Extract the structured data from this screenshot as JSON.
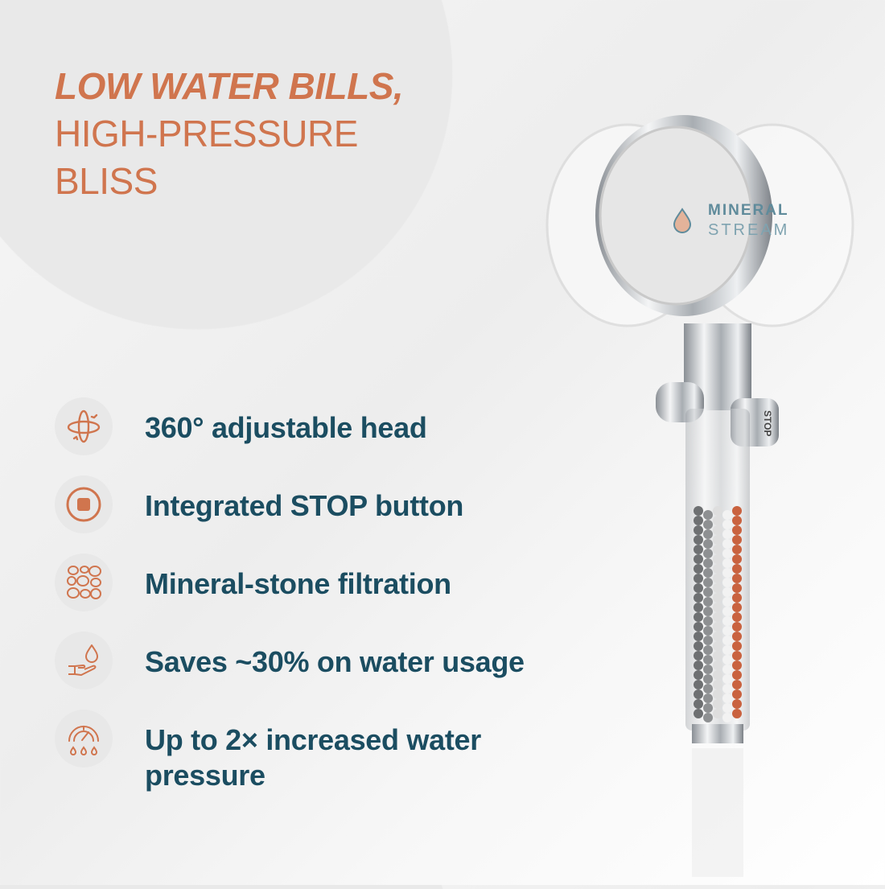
{
  "headline": {
    "emphasis": "LOW WATER BILLS,",
    "line2": "HIGH-PRESSURE",
    "line3": "BLISS"
  },
  "features": [
    {
      "icon": "rotate-360-icon",
      "label": "360° adjustable head"
    },
    {
      "icon": "stop-button-icon",
      "label": "Integrated STOP button"
    },
    {
      "icon": "mineral-stones-icon",
      "label": "Mineral-stone filtration"
    },
    {
      "icon": "hand-water-drop-icon",
      "label": "Saves ~30% on water usage"
    },
    {
      "icon": "pressure-gauge-icon",
      "label": "Up to 2× increased water pressure"
    }
  ],
  "product": {
    "brand_line1": "MINERAL",
    "brand_line2": "STREAM",
    "button_text": "STOP"
  },
  "colors": {
    "accent": "#d0754e",
    "text": "#1b4d61",
    "icon_bg": "#e8e8e8",
    "brand": "#5f8b9b"
  }
}
